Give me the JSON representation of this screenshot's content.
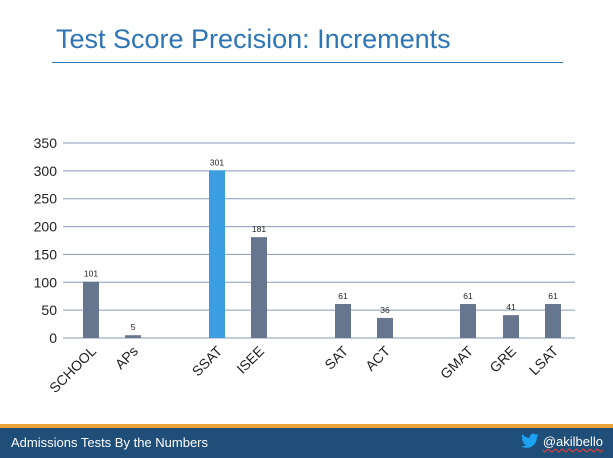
{
  "slide": {
    "title": "Test Score Precision: Increments"
  },
  "chart_data": {
    "type": "bar",
    "title": "",
    "xlabel": "",
    "ylabel": "",
    "ylim": [
      0,
      350
    ],
    "yticks": [
      0,
      50,
      100,
      150,
      200,
      250,
      300,
      350
    ],
    "grid": true,
    "legend": "none",
    "categories": [
      "SCHOOL",
      "APs",
      "SSAT",
      "ISEE",
      "SAT",
      "ACT",
      "GMAT",
      "GRE",
      "LSAT"
    ],
    "values": [
      101,
      5,
      301,
      181,
      61,
      36,
      61,
      41,
      61
    ],
    "bar_colors": [
      "#66768e",
      "#66768e",
      "#3a9ee0",
      "#66768e",
      "#66768e",
      "#66768e",
      "#66768e",
      "#66768e",
      "#66768e"
    ],
    "gridline_color": "#8a9ab8"
  },
  "footer": {
    "text": "Admissions Tests By the Numbers",
    "handle": "@akilbello",
    "icon": "twitter-bird-icon",
    "bar_color": "#1f4e79",
    "accent_color": "#e8a33a"
  }
}
